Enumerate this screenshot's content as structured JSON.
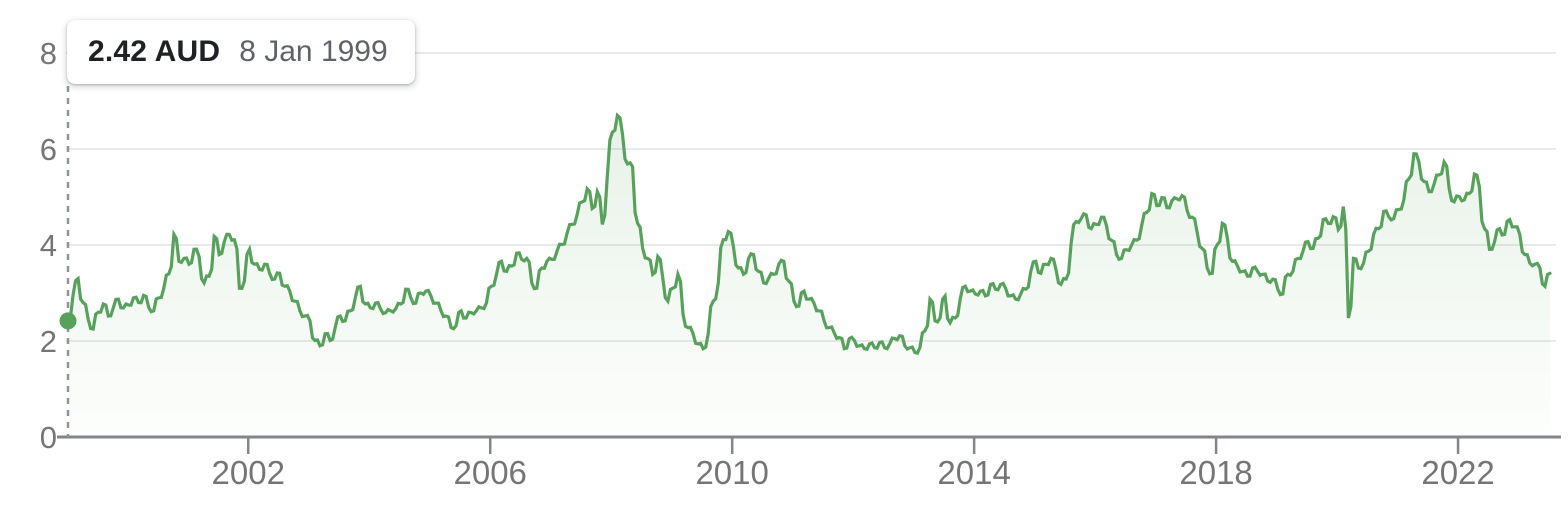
{
  "tooltip": {
    "price": "2.42 AUD",
    "date": "8 Jan 1999"
  },
  "chart_data": {
    "type": "area",
    "unit": "AUD",
    "x_start": 1999.02,
    "x_end": 2023.52,
    "x_step_years": 0.0833333,
    "xticks": [
      2002,
      2006,
      2010,
      2014,
      2018,
      2022
    ],
    "yticks": [
      0,
      2,
      4,
      6,
      8
    ],
    "ylim": [
      0,
      8
    ],
    "grid": "horizontal",
    "legend": "none",
    "highlight": {
      "x": 1999.02,
      "value": 2.42,
      "label": "2.42 AUD",
      "date": "8 Jan 1999"
    },
    "series": [
      {
        "name": "price-aud",
        "values": [
          2.42,
          2.95,
          3.3,
          2.8,
          2.45,
          2.25,
          2.6,
          2.77,
          2.52,
          2.7,
          2.87,
          2.69,
          2.75,
          2.9,
          2.8,
          2.95,
          2.7,
          2.63,
          2.9,
          3.1,
          3.4,
          4.22,
          3.66,
          3.72,
          3.6,
          3.91,
          3.76,
          3.21,
          3.35,
          4.18,
          3.8,
          4.07,
          4.22,
          4.11,
          3.1,
          3.25,
          3.91,
          3.6,
          3.49,
          3.6,
          3.41,
          3.29,
          3.41,
          3.14,
          3.04,
          2.83,
          2.63,
          2.52,
          2.42,
          2.01,
          1.9,
          2.15,
          2.01,
          2.28,
          2.52,
          2.42,
          2.63,
          2.9,
          3.14,
          2.77,
          2.69,
          2.79,
          2.67,
          2.59,
          2.63,
          2.67,
          2.77,
          3.08,
          2.9,
          2.79,
          3.0,
          3.04,
          2.94,
          2.79,
          2.63,
          2.52,
          2.28,
          2.32,
          2.63,
          2.48,
          2.59,
          2.63,
          2.69,
          2.79,
          3.14,
          3.39,
          3.66,
          3.45,
          3.56,
          3.83,
          3.7,
          3.72,
          3.21,
          3.1,
          3.52,
          3.66,
          3.7,
          3.87,
          4.01,
          4.24,
          4.43,
          4.63,
          4.9,
          5.17,
          4.76,
          5.11,
          4.43,
          5.46,
          6.35,
          6.7,
          6.31,
          5.69,
          5.63,
          4.45,
          3.93,
          3.72,
          3.39,
          3.76,
          3.31,
          2.83,
          3.1,
          3.39,
          2.56,
          2.28,
          2.15,
          1.94,
          1.84,
          2.15,
          2.83,
          3.21,
          4.11,
          4.28,
          3.97,
          3.52,
          3.39,
          3.72,
          3.8,
          3.45,
          3.21,
          3.31,
          3.39,
          3.6,
          3.66,
          3.25,
          2.83,
          2.73,
          3.04,
          2.87,
          2.79,
          2.63,
          2.42,
          2.28,
          2.17,
          2.07,
          1.84,
          2.05,
          2.01,
          1.9,
          1.84,
          1.94,
          1.86,
          1.97,
          1.86,
          1.94,
          2.05,
          2.11,
          1.9,
          1.86,
          1.76,
          1.86,
          2.21,
          2.87,
          2.42,
          2.48,
          2.94,
          2.38,
          2.48,
          2.87,
          3.14,
          3.04,
          2.98,
          3.04,
          2.94,
          3.18,
          3.08,
          3.18,
          3.1,
          2.94,
          2.87,
          2.98,
          3.08,
          3.45,
          3.66,
          3.41,
          3.6,
          3.72,
          3.49,
          3.18,
          3.29,
          4.03,
          4.49,
          4.55,
          4.63,
          4.34,
          4.43,
          4.58,
          4.41,
          4.1,
          3.8,
          3.72,
          3.9,
          4.0,
          4.1,
          4.41,
          4.68,
          5.07,
          4.82,
          4.99,
          4.78,
          4.92,
          4.96,
          5.03,
          4.72,
          4.58,
          4.27,
          3.93,
          3.52,
          3.41,
          4.01,
          4.45,
          4.14,
          3.66,
          3.56,
          3.45,
          3.35,
          3.52,
          3.45,
          3.39,
          3.25,
          3.29,
          3.08,
          2.98,
          3.39,
          3.45,
          3.72,
          3.87,
          4.07,
          3.93,
          4.14,
          4.53,
          4.45,
          4.59,
          4.32,
          4.8,
          2.48,
          3.72,
          3.52,
          3.62,
          3.87,
          4.22,
          4.34,
          4.7,
          4.59,
          4.55,
          4.74,
          4.94,
          5.38,
          5.9,
          5.73,
          5.32,
          5.11,
          5.27,
          5.46,
          5.73,
          5.17,
          4.9,
          5.01,
          4.94,
          5.07,
          5.48,
          5.21,
          4.34,
          3.91,
          4.07,
          4.34,
          4.22,
          4.53,
          4.38,
          4.22,
          3.8,
          3.62,
          3.6,
          3.52,
          3.14,
          3.41
        ]
      }
    ],
    "colors": {
      "line": "#58a15c",
      "marker": "#58a15c",
      "fill_top": "rgba(88,161,92,0.17)",
      "fill_bottom": "rgba(88,161,92,0.01)",
      "gridline": "#e9e9e9",
      "axis": "#80868b",
      "tick_label": "#757575",
      "guide_line": "#8f9499",
      "tooltip_value": "#202124",
      "tooltip_date": "#5f6368"
    }
  }
}
